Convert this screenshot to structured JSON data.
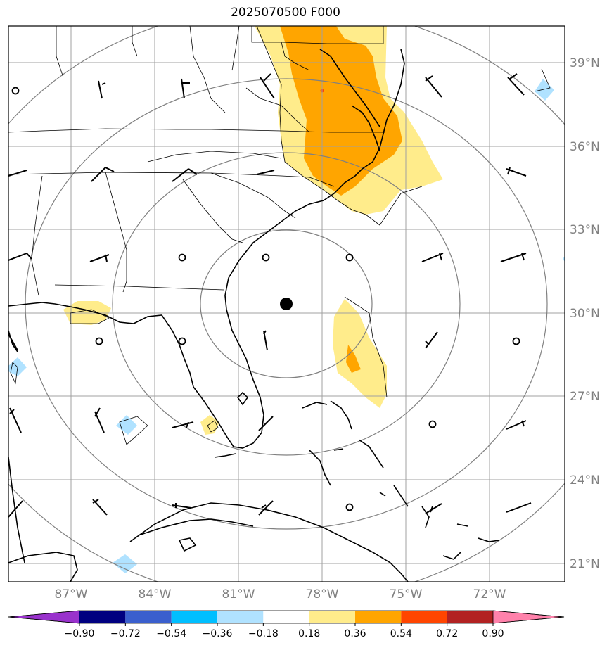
{
  "title": "2025070500 F000",
  "lat_labels": [
    "39°N",
    "36°N",
    "33°N",
    "30°N",
    "27°N",
    "24°N",
    "21°N"
  ],
  "lon_labels": [
    "87°W",
    "84°W",
    "81°W",
    "78°W",
    "75°W",
    "72°W"
  ],
  "colorbar": {
    "ticks": [
      "−0.90",
      "−0.72",
      "−0.54",
      "−0.36",
      "−0.18",
      "0.18",
      "0.36",
      "0.54",
      "0.72",
      "0.90"
    ],
    "colors": [
      "#9932CC",
      "#000080",
      "#3A5FCD",
      "#00BFFF",
      "#B0E2FF",
      "#FFFFFF",
      "#FFEC8B",
      "#FFA500",
      "#FF4500",
      "#B22222",
      "#FF82AB"
    ]
  },
  "storm_center": {
    "lat": 30.3,
    "lon": -79.1
  },
  "colors": {
    "grid": "#a0a0a0",
    "range_rings": "#808080",
    "coast": "#000000",
    "field_positive_light": "#FFEC8B",
    "field_positive_mid": "#FFA500",
    "field_negative_light": "#B0E2FF"
  }
}
